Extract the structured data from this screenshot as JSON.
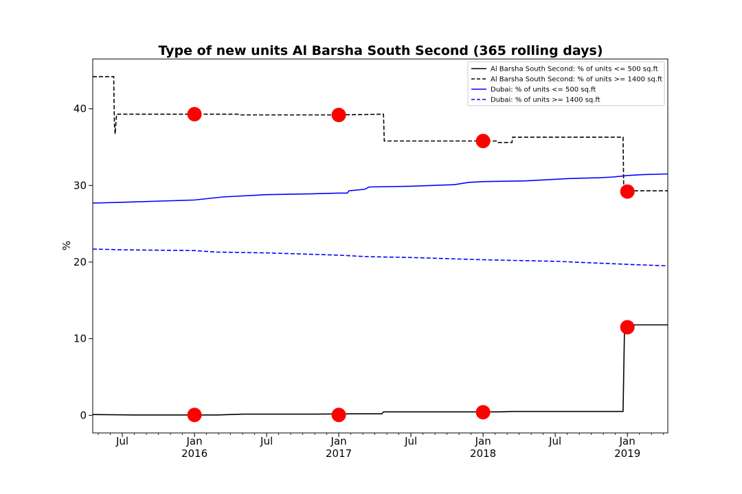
{
  "chart_data": {
    "type": "line",
    "title": "Type of new units Al Barsha South Second (365 rolling days)",
    "xlabel": "",
    "ylabel": "%",
    "ylim": [
      -2.3,
      46.5
    ],
    "xlim": [
      2015.295,
      2019.28
    ],
    "yticks": [
      0,
      10,
      20,
      30,
      40
    ],
    "ytick_labels": [
      "0",
      "10",
      "20",
      "30",
      "40"
    ],
    "xticks": [
      {
        "x": 2015.5,
        "label": "Jul"
      },
      {
        "x": 2016.0,
        "label": "Jan",
        "sub": "2016"
      },
      {
        "x": 2016.5,
        "label": "Jul"
      },
      {
        "x": 2017.0,
        "label": "Jan",
        "sub": "2017"
      },
      {
        "x": 2017.5,
        "label": "Jul"
      },
      {
        "x": 2018.0,
        "label": "Jan",
        "sub": "2018"
      },
      {
        "x": 2018.5,
        "label": "Jul"
      },
      {
        "x": 2019.0,
        "label": "Jan",
        "sub": "2019"
      }
    ],
    "legend_position": "top-right",
    "series": [
      {
        "name": "Al Barsha South Second: % of units <= 500 sq.ft",
        "color": "#000000",
        "dashed": false,
        "x": [
          2015.295,
          2015.58,
          2016.16,
          2016.34,
          2016.62,
          2016.84,
          2017.15,
          2017.3,
          2017.31,
          2017.55,
          2018.11,
          2018.2,
          2018.5,
          2018.97,
          2018.98,
          2019.0,
          2019.04,
          2019.05,
          2019.28
        ],
        "y": [
          0.1,
          0.05,
          0.05,
          0.15,
          0.15,
          0.15,
          0.2,
          0.2,
          0.45,
          0.45,
          0.45,
          0.5,
          0.5,
          0.5,
          11.5,
          11.5,
          11.5,
          11.8,
          11.8
        ]
      },
      {
        "name": "Al Barsha South Second: % of units >= 1400 sq.ft",
        "color": "#000000",
        "dashed": true,
        "x": [
          2015.295,
          2015.44,
          2015.445,
          2015.45,
          2015.455,
          2015.46,
          2016.3,
          2016.31,
          2017.0,
          2017.31,
          2017.315,
          2018.0,
          2018.1,
          2018.105,
          2018.2,
          2018.205,
          2018.97,
          2018.975,
          2019.02,
          2019.025,
          2019.28
        ],
        "y": [
          44.2,
          44.2,
          38.0,
          36.7,
          38.0,
          39.3,
          39.3,
          39.2,
          39.2,
          39.3,
          35.8,
          35.8,
          35.8,
          35.6,
          35.6,
          36.3,
          36.3,
          29.0,
          29.0,
          29.3,
          29.3
        ]
      },
      {
        "name": "Dubai: % of units <= 500 sq.ft",
        "color": "#0000ff",
        "dashed": false,
        "x": [
          2015.295,
          2015.5,
          2016.0,
          2016.2,
          2016.5,
          2016.8,
          2017.0,
          2017.06,
          2017.07,
          2017.18,
          2017.21,
          2017.5,
          2017.8,
          2017.9,
          2018.0,
          2018.3,
          2018.6,
          2018.8,
          2018.9,
          2019.0,
          2019.1,
          2019.28
        ],
        "y": [
          27.7,
          27.8,
          28.1,
          28.5,
          28.8,
          28.9,
          29.0,
          29.0,
          29.3,
          29.5,
          29.8,
          29.9,
          30.1,
          30.4,
          30.5,
          30.6,
          30.9,
          31.0,
          31.1,
          31.3,
          31.4,
          31.5
        ]
      },
      {
        "name": "Dubai: % of units >= 1400 sq.ft",
        "color": "#0000ff",
        "dashed": true,
        "x": [
          2015.295,
          2015.5,
          2016.0,
          2016.15,
          2016.5,
          2017.0,
          2017.2,
          2017.5,
          2018.0,
          2018.5,
          2019.0,
          2019.28
        ],
        "y": [
          21.7,
          21.6,
          21.5,
          21.3,
          21.2,
          20.9,
          20.7,
          20.6,
          20.3,
          20.1,
          19.7,
          19.5
        ]
      }
    ],
    "markers": {
      "color": "#ff0000",
      "points": [
        {
          "x": 2016.0,
          "y": 39.3
        },
        {
          "x": 2017.0,
          "y": 39.2
        },
        {
          "x": 2018.0,
          "y": 35.8
        },
        {
          "x": 2019.0,
          "y": 29.2
        },
        {
          "x": 2016.0,
          "y": 0.05
        },
        {
          "x": 2017.0,
          "y": 0.05
        },
        {
          "x": 2018.0,
          "y": 0.4
        },
        {
          "x": 2019.0,
          "y": 11.5
        }
      ]
    }
  }
}
